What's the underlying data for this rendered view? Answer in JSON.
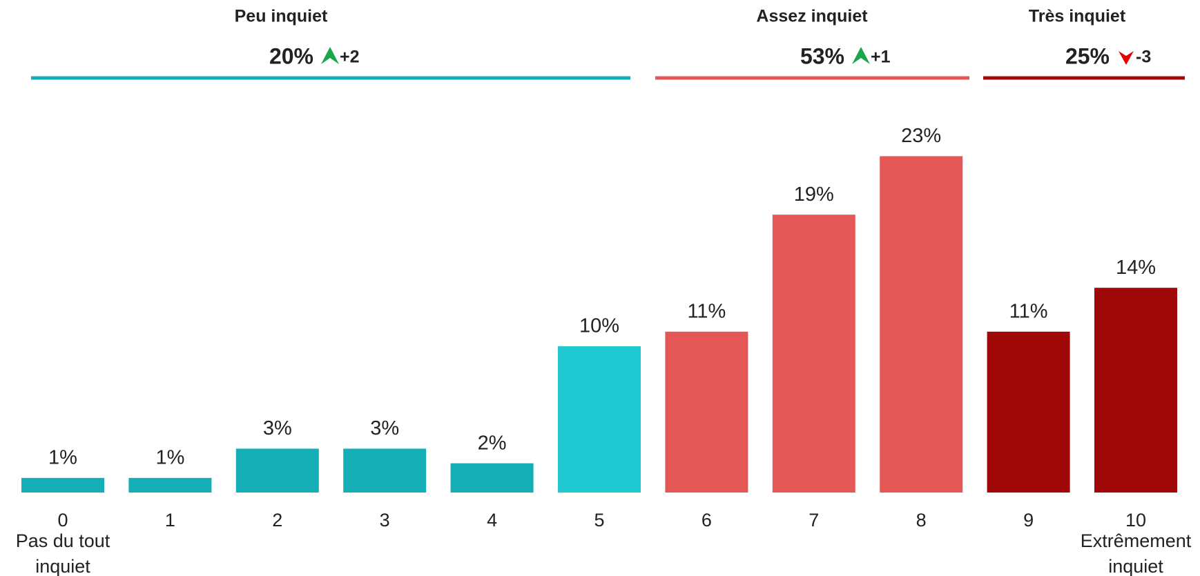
{
  "chart_data": {
    "type": "bar",
    "categories": [
      "0",
      "1",
      "2",
      "3",
      "4",
      "5",
      "6",
      "7",
      "8",
      "9",
      "10"
    ],
    "values": [
      1,
      1,
      3,
      3,
      2,
      10,
      11,
      19,
      23,
      11,
      14
    ],
    "value_labels": [
      "1%",
      "1%",
      "3%",
      "3%",
      "2%",
      "10%",
      "11%",
      "19%",
      "23%",
      "11%",
      "14%"
    ],
    "colors": [
      "#14aeb6",
      "#14aeb6",
      "#14aeb6",
      "#14aeb6",
      "#14aeb6",
      "#1fc8d0",
      "#e35757",
      "#e35757",
      "#e35757",
      "#a00808",
      "#a00808"
    ],
    "ylim": [
      0,
      25
    ],
    "grid": false,
    "end_labels": [
      {
        "category": 0,
        "lines": [
          "Pas du tout",
          "inquiet"
        ]
      },
      {
        "category": 10,
        "lines": [
          "Extrêmement",
          "inquiet"
        ]
      }
    ],
    "groups": [
      {
        "name": "Peu inquiet",
        "value": 20,
        "value_label": "20%",
        "change": 2,
        "change_label": "+2",
        "color": "#14aeb6"
      },
      {
        "name": "Assez inquiet",
        "value": 53,
        "value_label": "53%",
        "change": 1,
        "change_label": "+1",
        "color": "#e35757"
      },
      {
        "name": "Très inquiet",
        "value": 25,
        "value_label": "25%",
        "change": -3,
        "change_label": "-3",
        "color": "#a00808"
      }
    ]
  }
}
